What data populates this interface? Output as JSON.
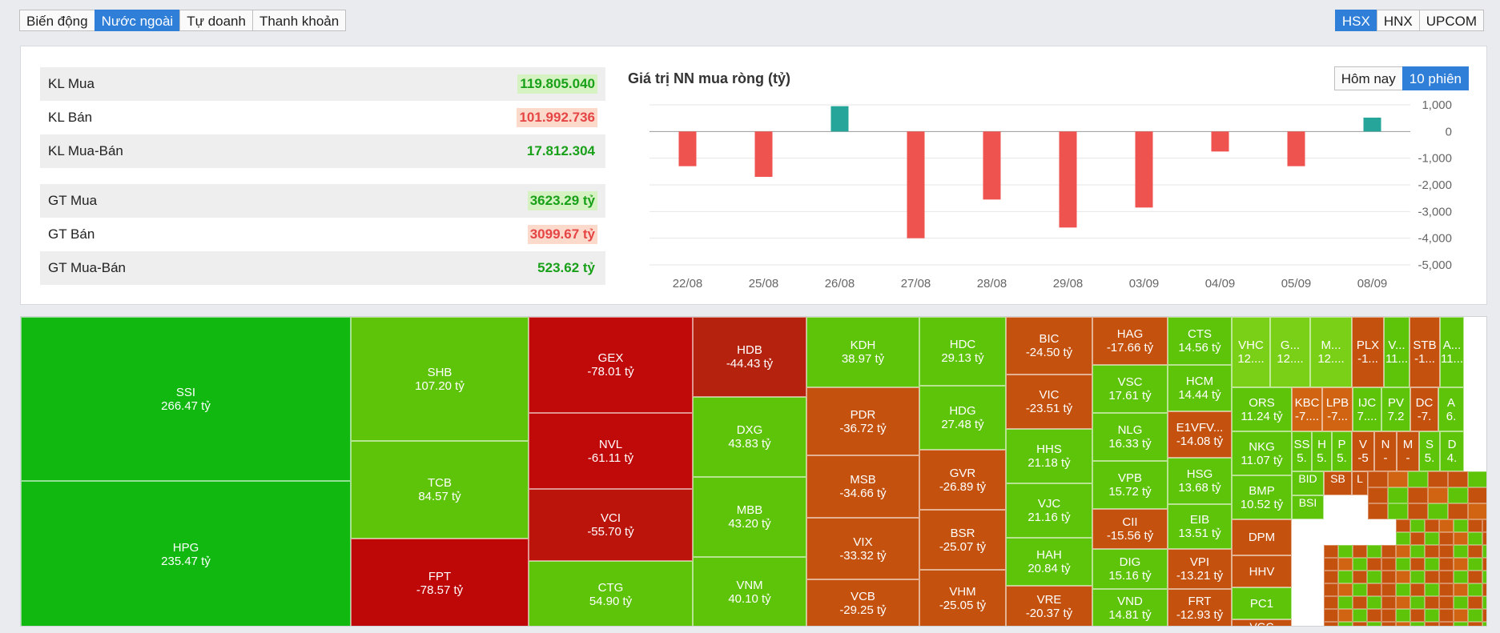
{
  "tabs": [
    "Biến động",
    "Nước ngoài",
    "Tự doanh",
    "Thanh khoản"
  ],
  "active_tab": 1,
  "exchanges": [
    "HSX",
    "HNX",
    "UPCOM"
  ],
  "active_exchange": 0,
  "stats": {
    "kl_mua_label": "KL Mua",
    "kl_mua": "119.805.040",
    "kl_ban_label": "KL Bán",
    "kl_ban": "101.992.736",
    "kl_net_label": "KL Mua-Bán",
    "kl_net": "17.812.304",
    "gt_mua_label": "GT Mua",
    "gt_mua": "3623.29 tỷ",
    "gt_ban_label": "GT Bán",
    "gt_ban": "3099.67 tỷ",
    "gt_net_label": "GT Mua-Bán",
    "gt_net": "523.62 tỷ"
  },
  "chart_title": "Giá trị NN mua ròng (tỷ)",
  "range_buttons": [
    "Hôm nay",
    "10 phiên"
  ],
  "active_range": 1,
  "colors": {
    "positive": "#26a69a",
    "negative": "#ef5350"
  },
  "chart_data": {
    "type": "bar",
    "title": "Giá trị NN mua ròng (tỷ)",
    "categories": [
      "22/08",
      "25/08",
      "26/08",
      "27/08",
      "28/08",
      "29/08",
      "03/09",
      "04/09",
      "05/09",
      "08/09"
    ],
    "values": [
      -1300,
      -1700,
      950,
      -4000,
      -2550,
      -3600,
      -2850,
      -750,
      -1300,
      520
    ],
    "ylim": [
      -5000,
      1000
    ],
    "yticks": [
      "1,000",
      "0",
      "-1,000",
      "-2,000",
      "-3,000",
      "-4,000",
      "-5,000"
    ],
    "ytick_values": [
      1000,
      0,
      -1000,
      -2000,
      -3000,
      -4000,
      -5000
    ]
  },
  "treemap": [
    {
      "name": "SSI",
      "value": "266.47 tỷ"
    },
    {
      "name": "HPG",
      "value": "235.47 tỷ"
    },
    {
      "name": "SHB",
      "value": "107.20 tỷ"
    },
    {
      "name": "TCB",
      "value": "84.57 tỷ"
    },
    {
      "name": "FPT",
      "value": "-78.57 tỷ"
    },
    {
      "name": "GEX",
      "value": "-78.01 tỷ"
    },
    {
      "name": "NVL",
      "value": "-61.11 tỷ"
    },
    {
      "name": "VCI",
      "value": "-55.70 tỷ"
    },
    {
      "name": "CTG",
      "value": "54.90 tỷ"
    },
    {
      "name": "HDB",
      "value": "-44.43 tỷ"
    },
    {
      "name": "DXG",
      "value": "43.83 tỷ"
    },
    {
      "name": "MBB",
      "value": "43.20 tỷ"
    },
    {
      "name": "VNM",
      "value": "40.10 tỷ"
    },
    {
      "name": "KDH",
      "value": "38.97 tỷ"
    },
    {
      "name": "PDR",
      "value": "-36.72 tỷ"
    },
    {
      "name": "MSB",
      "value": "-34.66 tỷ"
    },
    {
      "name": "VIX",
      "value": "-33.32 tỷ"
    },
    {
      "name": "VCB",
      "value": "-29.25 tỷ"
    },
    {
      "name": "HDC",
      "value": "29.13 tỷ"
    },
    {
      "name": "HDG",
      "value": "27.48 tỷ"
    },
    {
      "name": "GVR",
      "value": "-26.89 tỷ"
    },
    {
      "name": "BSR",
      "value": "-25.07 tỷ"
    },
    {
      "name": "VHM",
      "value": "-25.05 tỷ"
    },
    {
      "name": "BIC",
      "value": "-24.50 tỷ"
    },
    {
      "name": "VIC",
      "value": "-23.51 tỷ"
    },
    {
      "name": "HHS",
      "value": "21.18 tỷ"
    },
    {
      "name": "VJC",
      "value": "21.16 tỷ"
    },
    {
      "name": "HAH",
      "value": "20.84 tỷ"
    },
    {
      "name": "VRE",
      "value": "-20.37 tỷ"
    },
    {
      "name": "HAG",
      "value": "-17.66 tỷ"
    },
    {
      "name": "VSC",
      "value": "17.61 tỷ"
    },
    {
      "name": "NLG",
      "value": "16.33 tỷ"
    },
    {
      "name": "VPB",
      "value": "15.72 tỷ"
    },
    {
      "name": "CII",
      "value": "-15.56 tỷ"
    },
    {
      "name": "DIG",
      "value": "15.16 tỷ"
    },
    {
      "name": "VND",
      "value": "14.81 tỷ"
    },
    {
      "name": "CTS",
      "value": "14.56 tỷ"
    },
    {
      "name": "HCM",
      "value": "14.44 tỷ"
    },
    {
      "name": "E1VFV...",
      "value": "-14.08 tỷ"
    },
    {
      "name": "HSG",
      "value": "13.68 tỷ"
    },
    {
      "name": "EIB",
      "value": "13.51 tỷ"
    },
    {
      "name": "VPI",
      "value": "-13.21 tỷ"
    },
    {
      "name": "FRT",
      "value": "-12.93 tỷ"
    },
    {
      "name": "VHC",
      "value": "12...."
    },
    {
      "name": "G...",
      "value": "12...."
    },
    {
      "name": "M...",
      "value": "12...."
    },
    {
      "name": "PLX",
      "value": "-1..."
    },
    {
      "name": "V...",
      "value": "11..."
    },
    {
      "name": "STB",
      "value": "-1..."
    },
    {
      "name": "A...",
      "value": "11..."
    },
    {
      "name": "ORS",
      "value": "11.24 tỷ"
    },
    {
      "name": "NKG",
      "value": "11.07 tỷ"
    },
    {
      "name": "BMP",
      "value": "10.52 tỷ"
    },
    {
      "name": "DPM",
      "value": ""
    },
    {
      "name": "HHV",
      "value": ""
    },
    {
      "name": "PC1",
      "value": ""
    },
    {
      "name": "VGC",
      "value": ""
    },
    {
      "name": "KBC",
      "value": "-7...."
    },
    {
      "name": "LPB",
      "value": "-7..."
    },
    {
      "name": "IJC",
      "value": "7...."
    },
    {
      "name": "PV",
      "value": "7.2"
    },
    {
      "name": "DC",
      "value": "-7."
    },
    {
      "name": "A",
      "value": "6."
    },
    {
      "name": "SS",
      "value": "5."
    },
    {
      "name": "H",
      "value": "5."
    },
    {
      "name": "P",
      "value": "5."
    },
    {
      "name": "V",
      "value": "-5"
    },
    {
      "name": "N",
      "value": "-"
    },
    {
      "name": "M",
      "value": "-"
    },
    {
      "name": "S",
      "value": "5."
    },
    {
      "name": "D",
      "value": "4."
    },
    {
      "name": "BID",
      "value": ""
    },
    {
      "name": "SB",
      "value": ""
    },
    {
      "name": "L",
      "value": ""
    },
    {
      "name": "BSI",
      "value": ""
    }
  ]
}
